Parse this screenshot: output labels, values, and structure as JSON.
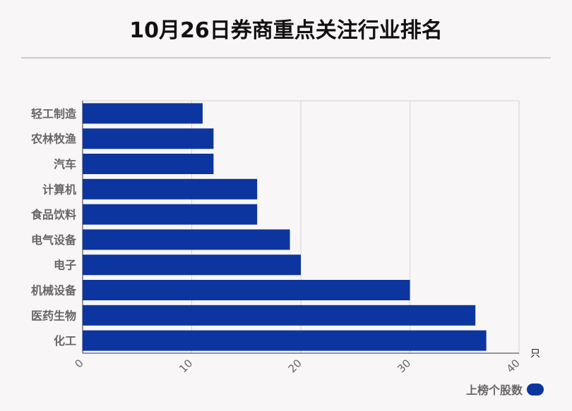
{
  "title": "10月26日券商重点关注行业排名",
  "chart_data": {
    "type": "bar",
    "orientation": "horizontal",
    "categories": [
      "轻工制造",
      "农林牧渔",
      "汽车",
      "计算机",
      "食品饮料",
      "电气设备",
      "电子",
      "机械设备",
      "医药生物",
      "化工"
    ],
    "series": [
      {
        "name": "上榜个股数",
        "values": [
          11,
          12,
          12,
          16,
          16,
          19,
          20,
          30,
          36,
          37
        ]
      }
    ],
    "xlim": [
      0,
      40
    ],
    "xticks": [
      "0",
      "10",
      "20",
      "30",
      "40"
    ],
    "unit": "只",
    "grid": true,
    "legend_position": "bottom-right",
    "bar_color": "#0d35a0"
  }
}
